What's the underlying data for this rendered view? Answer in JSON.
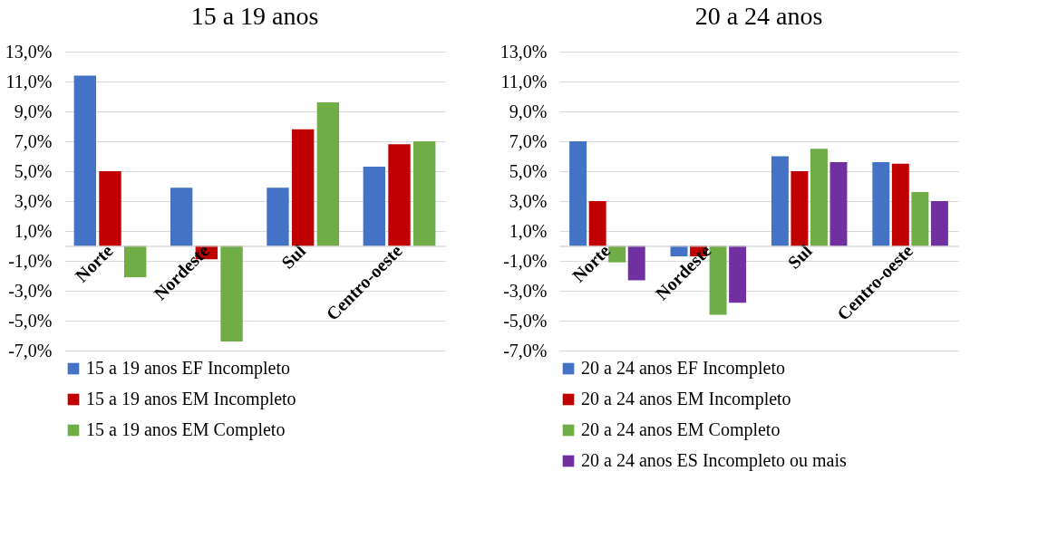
{
  "chart_data": [
    {
      "type": "bar",
      "title": "15 a 19 anos",
      "categories": [
        "Norte",
        "Nordeste",
        "Sul",
        "Centro-oeste"
      ],
      "series": [
        {
          "name": "15 a 19 anos EF Incompleto",
          "color": "#4472c4",
          "values": [
            11.4,
            3.9,
            3.9,
            5.3
          ]
        },
        {
          "name": "15 a 19 anos EM Incompleto",
          "color": "#c00000",
          "values": [
            5.0,
            -0.9,
            7.8,
            6.8
          ]
        },
        {
          "name": "15 a 19 anos EM Completo",
          "color": "#70ad47",
          "values": [
            -2.1,
            -6.4,
            9.6,
            7.0
          ]
        }
      ],
      "ylim": [
        -7,
        13
      ],
      "yticks": [
        {
          "value": -7,
          "label": "-7,0%"
        },
        {
          "value": -5,
          "label": "-5,0%"
        },
        {
          "value": -3,
          "label": "-3,0%"
        },
        {
          "value": -1,
          "label": "-1,0%"
        },
        {
          "value": 1,
          "label": "1,0%"
        },
        {
          "value": 3,
          "label": "3,0%"
        },
        {
          "value": 5,
          "label": "5,0%"
        },
        {
          "value": 7,
          "label": "7,0%"
        },
        {
          "value": 9,
          "label": "9,0%"
        },
        {
          "value": 11,
          "label": "11,0%"
        },
        {
          "value": 13,
          "label": "13,0%"
        }
      ],
      "grid": "y",
      "legend": "bottom"
    },
    {
      "type": "bar",
      "title": "20 a 24 anos",
      "categories": [
        "Norte",
        "Nordeste",
        "Sul",
        "Centro-oeste"
      ],
      "series": [
        {
          "name": "20 a 24 anos EF Incompleto",
          "color": "#4472c4",
          "values": [
            7.0,
            -0.7,
            6.0,
            5.6
          ]
        },
        {
          "name": "20 a 24 anos EM Incompleto",
          "color": "#c00000",
          "values": [
            3.0,
            -0.7,
            5.0,
            5.5
          ]
        },
        {
          "name": "20 a 24 anos EM Completo",
          "color": "#70ad47",
          "values": [
            -1.1,
            -4.6,
            6.5,
            3.6
          ]
        },
        {
          "name": "20 a 24 anos ES Incompleto ou mais",
          "color": "#7030a0",
          "values": [
            -2.3,
            -3.8,
            5.6,
            3.0
          ]
        }
      ],
      "ylim": [
        -7,
        13
      ],
      "yticks": [
        {
          "value": -7,
          "label": "-7,0%"
        },
        {
          "value": -5,
          "label": "-5,0%"
        },
        {
          "value": -3,
          "label": "-3,0%"
        },
        {
          "value": -1,
          "label": "-1,0%"
        },
        {
          "value": 1,
          "label": "1,0%"
        },
        {
          "value": 3,
          "label": "3,0%"
        },
        {
          "value": 5,
          "label": "5,0%"
        },
        {
          "value": 7,
          "label": "7,0%"
        },
        {
          "value": 9,
          "label": "9,0%"
        },
        {
          "value": 11,
          "label": "11,0%"
        },
        {
          "value": 13,
          "label": "13,0%"
        }
      ],
      "grid": "y",
      "legend": "bottom"
    }
  ]
}
